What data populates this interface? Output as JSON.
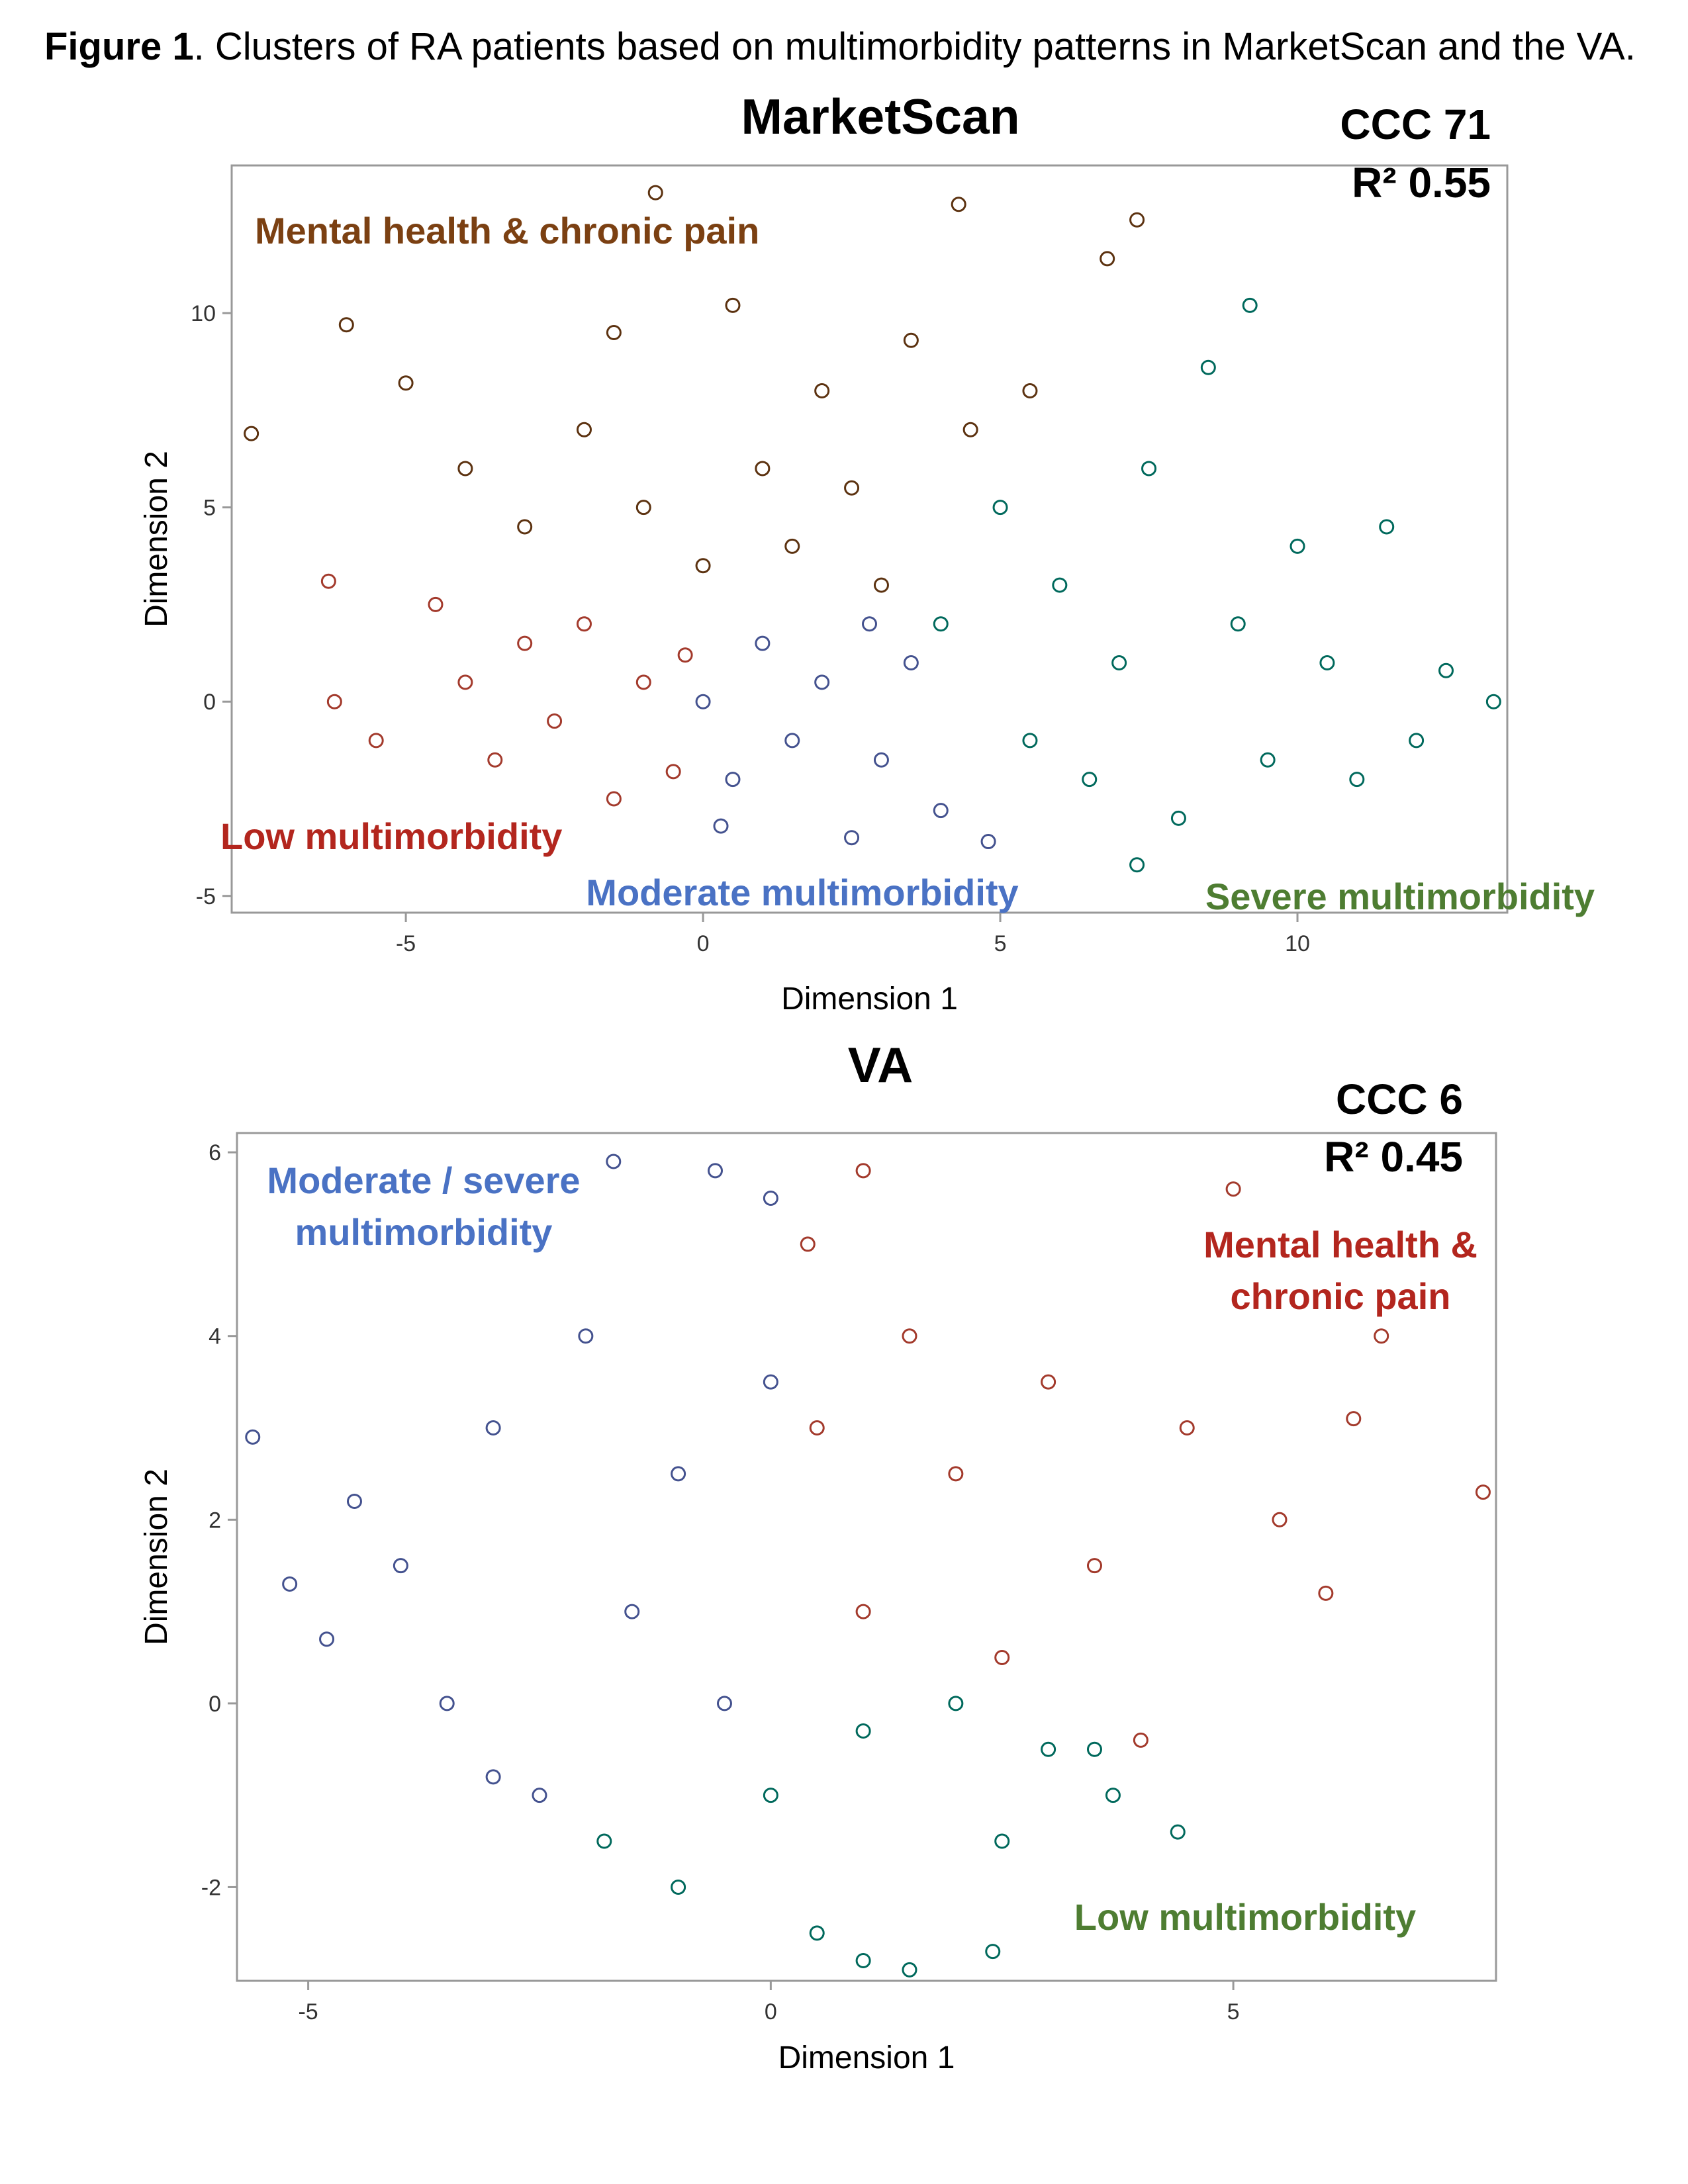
{
  "caption": {
    "label": "Figure 1",
    "text": ". Clusters of RA patients based on multimorbidity patterns in MarketScan and the VA."
  },
  "chart_data": [
    {
      "type": "scatter",
      "title": "MarketScan",
      "x_label": "Dimension 1",
      "y_label": "Dimension 2",
      "annotations": [
        "CCC 71",
        "R² 0.55"
      ],
      "xlim": [
        -7.93,
        13.53
      ],
      "ylim": [
        -5.43,
        13.8
      ],
      "xticks": [
        -5,
        0,
        5,
        10
      ],
      "yticks": [
        -5,
        0,
        5,
        10
      ],
      "grid": false,
      "series": [
        {
          "name": "Mental health & chronic pain",
          "color": "#5c3210",
          "label_color": "#7b4012",
          "x": [
            -7.6,
            -6,
            -5,
            -4,
            -3,
            -2,
            -1,
            -1.5,
            -0.8,
            0,
            0.5,
            1,
            1.5,
            2,
            2.5,
            3,
            3.5,
            4.3,
            4.5,
            5.5,
            7.3,
            6.8
          ],
          "y": [
            6.9,
            9.7,
            8.2,
            6,
            4.5,
            7,
            5,
            9.5,
            13.1,
            3.5,
            10.2,
            6,
            4,
            8,
            5.5,
            3,
            9.3,
            12.8,
            7,
            8,
            12.4,
            11.4
          ]
        },
        {
          "name": "Low multimorbidity",
          "color": "#a33a2c",
          "label_color": "#b3261e",
          "x": [
            -6.2,
            -5.5,
            -4.5,
            -4,
            -3.5,
            -3,
            -2.5,
            -2,
            -1.5,
            -1,
            -0.5,
            -0.3,
            -6.3
          ],
          "y": [
            0,
            -1,
            2.5,
            0.5,
            -1.5,
            1.5,
            -0.5,
            2,
            -2.5,
            0.5,
            -1.8,
            1.2,
            3.1
          ]
        },
        {
          "name": "Moderate multimorbidity",
          "color": "#44528f",
          "label_color": "#4a72c4",
          "x": [
            0,
            0.5,
            1,
            1.5,
            2,
            2.5,
            3,
            3.5,
            4,
            4.8,
            0.3,
            2.8
          ],
          "y": [
            0,
            -2,
            1.5,
            -1,
            0.5,
            -3.5,
            -1.5,
            1,
            -2.8,
            -3.6,
            -3.2,
            2
          ]
        },
        {
          "name": "Severe multimorbidity",
          "color": "#00695c",
          "label_color": "#4e7d32",
          "x": [
            4,
            5,
            5.5,
            6,
            6.5,
            7,
            7.5,
            8,
            8.5,
            9,
            9.5,
            10,
            10.5,
            11,
            11.5,
            12,
            12.5,
            13.3,
            9.2,
            7.3
          ],
          "y": [
            2,
            5,
            -1,
            3,
            -2,
            1,
            6,
            -3,
            8.6,
            2,
            -1.5,
            4,
            1,
            -2,
            4.5,
            -1,
            0.8,
            0,
            10.2,
            -4.2
          ]
        }
      ]
    },
    {
      "type": "scatter",
      "title": "VA",
      "x_label": "Dimension 1",
      "y_label": "Dimension 2",
      "annotations": [
        "CCC 6",
        "R² 0.45"
      ],
      "xlim": [
        -5.77,
        7.84
      ],
      "ylim": [
        -3.02,
        6.21
      ],
      "xticks": [
        -5,
        0,
        5
      ],
      "yticks": [
        -2,
        0,
        2,
        4,
        6
      ],
      "grid": false,
      "series": [
        {
          "name": "Moderate / severe multimorbidity",
          "color": "#44528f",
          "label_color": "#4a72c4",
          "x": [
            -5.6,
            -5.2,
            -4.8,
            -4.5,
            -4,
            -3.5,
            -3,
            -2.5,
            -2,
            -1.5,
            -1.7,
            -1,
            -0.6,
            -0.5,
            0,
            0,
            -3
          ],
          "y": [
            2.9,
            1.3,
            0.7,
            2.2,
            1.5,
            0,
            3,
            -1,
            4,
            1,
            5.9,
            2.5,
            5.8,
            0,
            3.5,
            5.5,
            -0.8
          ]
        },
        {
          "name": "Mental health & chronic pain",
          "color": "#a33a2c",
          "label_color": "#b3261e",
          "x": [
            0.4,
            0.5,
            1,
            1,
            1.5,
            2,
            2.5,
            3,
            3.5,
            4,
            4.5,
            5,
            5.5,
            6,
            6.6,
            7.7,
            6.3
          ],
          "y": [
            5,
            3,
            1,
            5.8,
            4,
            2.5,
            0.5,
            3.5,
            1.5,
            -0.4,
            3,
            5.6,
            2,
            1.2,
            4,
            2.3,
            3.1
          ]
        },
        {
          "name": "Low multimorbidity",
          "color": "#00695c",
          "label_color": "#4e7d32",
          "x": [
            -1.8,
            -1,
            0,
            0.5,
            1,
            1.5,
            2,
            2.5,
            3,
            2.4,
            3.5,
            4.4,
            1,
            3.7
          ],
          "y": [
            -1.5,
            -2,
            -1,
            -2.5,
            -2.8,
            -2.9,
            0,
            -1.5,
            -0.5,
            -2.7,
            -0.5,
            -1.4,
            -0.3,
            -1
          ]
        }
      ]
    }
  ]
}
